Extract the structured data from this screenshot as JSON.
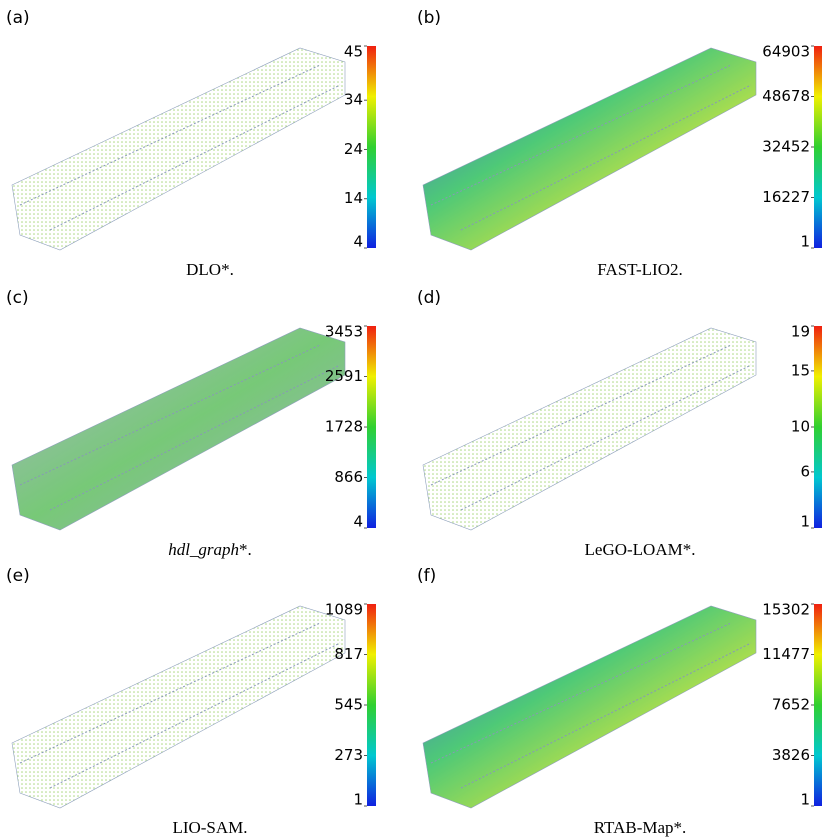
{
  "panels": [
    {
      "label": "(a)",
      "caption": [
        {
          "text": "DLO*."
        }
      ],
      "colorbar": {
        "ticks": [
          45,
          34,
          24,
          14,
          4
        ]
      }
    },
    {
      "label": "(b)",
      "caption": [
        {
          "text": "FAST-LIO2."
        }
      ],
      "colorbar": {
        "ticks": [
          64903,
          48678,
          32452,
          16227,
          1
        ]
      }
    },
    {
      "label": "(c)",
      "caption": [
        {
          "text": "hdl_graph",
          "italic": true
        },
        {
          "text": "*."
        }
      ],
      "colorbar": {
        "ticks": [
          3453,
          2591,
          1728,
          866,
          4
        ]
      }
    },
    {
      "label": "(d)",
      "caption": [
        {
          "text": "LeGO-LOAM*."
        }
      ],
      "colorbar": {
        "ticks": [
          19,
          15,
          10,
          6,
          1
        ]
      }
    },
    {
      "label": "(e)",
      "caption": [
        {
          "text": "LIO-SAM."
        }
      ],
      "colorbar": {
        "ticks": [
          1089,
          817,
          545,
          273,
          1
        ]
      }
    },
    {
      "label": "(f)",
      "caption": [
        {
          "text": "RTAB-Map*."
        }
      ],
      "colorbar": {
        "ticks": [
          15302,
          11477,
          7652,
          3826,
          1
        ]
      }
    }
  ]
}
